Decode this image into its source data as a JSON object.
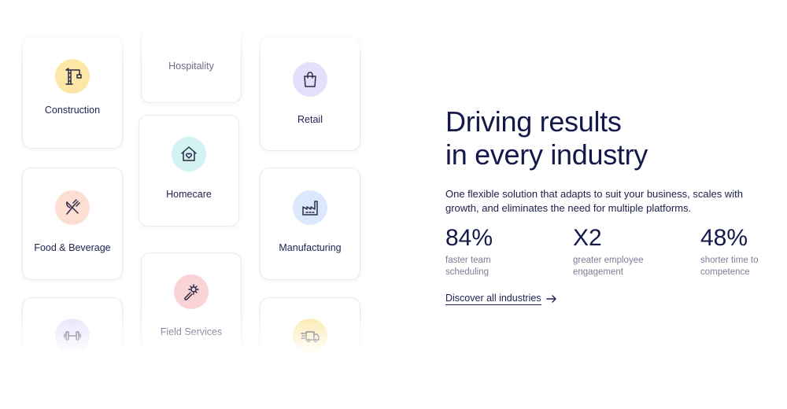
{
  "industries": [
    {
      "label": "Construction",
      "icon": "crane-icon",
      "color": "#fce7a6"
    },
    {
      "label": "Hospitality",
      "icon": "",
      "color": ""
    },
    {
      "label": "Retail",
      "icon": "shopping-bag-icon",
      "color": "#e4dffb"
    },
    {
      "label": "Homecare",
      "icon": "house-heart-icon",
      "color": "#d3f3f2"
    },
    {
      "label": "Food & Beverage",
      "icon": "fork-knife-icon",
      "color": "#fcdfd2"
    },
    {
      "label": "Manufacturing",
      "icon": "factory-icon",
      "color": "#dbe7fb"
    },
    {
      "label": "Field Services",
      "icon": "wrench-gear-icon",
      "color": "#f9d3d6"
    },
    {
      "label": "",
      "icon": "dumbbell-icon",
      "color": "#e6e0fb"
    },
    {
      "label": "",
      "icon": "delivery-truck-icon",
      "color": "#fce7a6"
    }
  ],
  "hero": {
    "title_line1": "Driving results",
    "title_line2": "in every industry",
    "description": "One flexible solution that adapts to suit your business, scales with growth, and eliminates the need for multiple platforms."
  },
  "stats": [
    {
      "value": "84%",
      "label_line1": "faster team",
      "label_line2": "scheduling"
    },
    {
      "value": "X2",
      "label_line1": "greater employee",
      "label_line2": "engagement"
    },
    {
      "value": "48%",
      "label_line1": "shorter time to",
      "label_line2": "competence"
    }
  ],
  "cta": {
    "label": "Discover all industries",
    "icon": "arrow-right-icon"
  }
}
